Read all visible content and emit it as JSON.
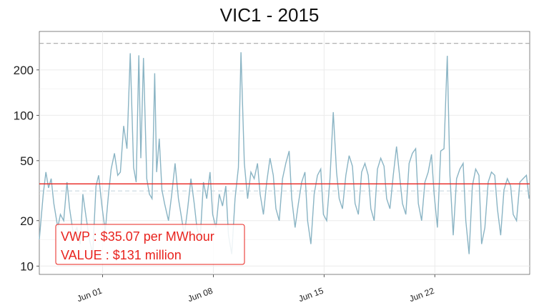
{
  "title": "VIC1 - 2015",
  "colors": {
    "series": "#8ab4c4",
    "vwp_line": "#e8231e",
    "cap_line": "#a8a8a8",
    "dashed_light": "#c9d8df",
    "annotation": "#e8231e",
    "grid": "#ebebeb"
  },
  "annotation": {
    "vwp_text": "VWP : $35.07 per MWhour",
    "value_text": "VALUE : $131 million"
  },
  "chart_data": {
    "type": "line",
    "title": "VIC1 - 2015",
    "xlabel": "",
    "ylabel": "",
    "y_scale": "log",
    "xlim": [
      "2015-05-28",
      "2015-06-28"
    ],
    "ylim": [
      8.8,
      360
    ],
    "grid": true,
    "y_ticks": [
      10,
      20,
      50,
      100,
      200
    ],
    "y_tick_labels": [
      "10",
      "20",
      "50",
      "100",
      "200"
    ],
    "x_ticks": [
      "2015-06-01",
      "2015-06-08",
      "2015-06-15",
      "2015-06-22"
    ],
    "x_tick_labels": [
      "Jun 01",
      "Jun 08",
      "Jun 15",
      "Jun 22"
    ],
    "reference_lines": [
      {
        "kind": "vwp",
        "y": 35.07
      },
      {
        "kind": "cap",
        "y": 300
      },
      {
        "kind": "mean",
        "y": 31.5
      }
    ],
    "series": [
      {
        "x": [
          "2015-05-28 00:00",
          "2015-05-28 06:00",
          "2015-05-28 10:00",
          "2015-05-28 14:00",
          "2015-05-28 18:00",
          "2015-05-28 22:00",
          "2015-05-29 04:00",
          "2015-05-29 08:00",
          "2015-05-29 13:00",
          "2015-05-29 18:00",
          "2015-05-29 22:00",
          "2015-05-30 04:00",
          "2015-05-30 09:00",
          "2015-05-30 14:00",
          "2015-05-30 18:00",
          "2015-05-30 23:00",
          "2015-05-31 04:00",
          "2015-05-31 09:00",
          "2015-05-31 14:00",
          "2015-05-31 18:00",
          "2015-05-31 23:00",
          "2015-06-01 04:00",
          "2015-06-01 09:00",
          "2015-06-01 13:00",
          "2015-06-01 18:00",
          "2015-06-01 23:00",
          "2015-06-02 03:00",
          "2015-06-02 08:00",
          "2015-06-02 13:00",
          "2015-06-02 18:00",
          "2015-06-02 23:00",
          "2015-06-03 03:00",
          "2015-06-03 07:00",
          "2015-06-03 10:00",
          "2015-06-03 14:00",
          "2015-06-03 19:00",
          "2015-06-03 23:00",
          "2015-06-04 03:00",
          "2015-06-04 07:00",
          "2015-06-04 10:00",
          "2015-06-04 14:00",
          "2015-06-04 18:00",
          "2015-06-04 22:00",
          "2015-06-05 04:00",
          "2015-06-05 09:00",
          "2015-06-05 14:00",
          "2015-06-05 19:00",
          "2015-06-05 23:00",
          "2015-06-06 04:00",
          "2015-06-06 09:00",
          "2015-06-06 14:00",
          "2015-06-06 19:00",
          "2015-06-06 23:00",
          "2015-06-07 04:00",
          "2015-06-07 09:00",
          "2015-06-07 14:00",
          "2015-06-07 19:00",
          "2015-06-07 23:00",
          "2015-06-08 04:00",
          "2015-06-08 09:00",
          "2015-06-08 14:00",
          "2015-06-08 19:00",
          "2015-06-08 23:00",
          "2015-06-09 04:00",
          "2015-06-09 09:00",
          "2015-06-09 14:00",
          "2015-06-09 18:00",
          "2015-06-09 23:00",
          "2015-06-10 04:00",
          "2015-06-10 09:00",
          "2015-06-10 14:00",
          "2015-06-10 19:00",
          "2015-06-10 23:00",
          "2015-06-11 04:00",
          "2015-06-11 09:00",
          "2015-06-11 14:00",
          "2015-06-11 19:00",
          "2015-06-11 23:00",
          "2015-06-12 04:00",
          "2015-06-12 09:00",
          "2015-06-12 14:00",
          "2015-06-12 19:00",
          "2015-06-12 23:00",
          "2015-06-13 04:00",
          "2015-06-13 09:00",
          "2015-06-13 14:00",
          "2015-06-13 19:00",
          "2015-06-13 23:00",
          "2015-06-14 04:00",
          "2015-06-14 09:00",
          "2015-06-14 14:00",
          "2015-06-14 19:00",
          "2015-06-14 23:00",
          "2015-06-15 04:00",
          "2015-06-15 09:00",
          "2015-06-15 14:00",
          "2015-06-15 19:00",
          "2015-06-15 23:00",
          "2015-06-16 04:00",
          "2015-06-16 09:00",
          "2015-06-16 14:00",
          "2015-06-16 19:00",
          "2015-06-16 23:00",
          "2015-06-17 04:00",
          "2015-06-17 09:00",
          "2015-06-17 14:00",
          "2015-06-17 19:00",
          "2015-06-17 23:00",
          "2015-06-18 04:00",
          "2015-06-18 09:00",
          "2015-06-18 14:00",
          "2015-06-18 19:00",
          "2015-06-18 23:00",
          "2015-06-19 04:00",
          "2015-06-19 09:00",
          "2015-06-19 14:00",
          "2015-06-19 19:00",
          "2015-06-19 23:00",
          "2015-06-20 04:00",
          "2015-06-20 09:00",
          "2015-06-20 14:00",
          "2015-06-20 19:00",
          "2015-06-20 23:00",
          "2015-06-21 04:00",
          "2015-06-21 09:00",
          "2015-06-21 14:00",
          "2015-06-21 19:00",
          "2015-06-21 23:00",
          "2015-06-22 04:00",
          "2015-06-22 09:00",
          "2015-06-22 14:00",
          "2015-06-22 19:00",
          "2015-06-22 23:00",
          "2015-06-23 04:00",
          "2015-06-23 09:00",
          "2015-06-23 14:00",
          "2015-06-23 19:00",
          "2015-06-23 23:00",
          "2015-06-24 04:00",
          "2015-06-24 09:00",
          "2015-06-24 14:00",
          "2015-06-24 19:00",
          "2015-06-24 23:00",
          "2015-06-25 04:00",
          "2015-06-25 09:00",
          "2015-06-25 14:00",
          "2015-06-25 19:00",
          "2015-06-25 23:00",
          "2015-06-26 04:00",
          "2015-06-26 09:00",
          "2015-06-26 14:00",
          "2015-06-26 19:00",
          "2015-06-26 23:00",
          "2015-06-27 04:00",
          "2015-06-27 09:00",
          "2015-06-27 14:00",
          "2015-06-27 19:00",
          "2015-06-27 23:00"
        ],
        "values": [
          15,
          30,
          42,
          33,
          38,
          26,
          18,
          22,
          20,
          36,
          24,
          16,
          18,
          14,
          30,
          21,
          15,
          12,
          34,
          40,
          25,
          17,
          30,
          44,
          56,
          40,
          42,
          85,
          60,
          258,
          45,
          36,
          250,
          52,
          240,
          38,
          30,
          28,
          190,
          42,
          70,
          32,
          26,
          20,
          30,
          48,
          28,
          22,
          16,
          24,
          38,
          26,
          18,
          15,
          36,
          28,
          42,
          22,
          18,
          30,
          25,
          34,
          16,
          12,
          28,
          45,
          262,
          48,
          28,
          42,
          38,
          48,
          30,
          22,
          36,
          52,
          40,
          24,
          20,
          38,
          48,
          58,
          28,
          18,
          26,
          36,
          42,
          20,
          14,
          30,
          40,
          44,
          22,
          20,
          38,
          105,
          42,
          28,
          24,
          40,
          54,
          46,
          26,
          22,
          42,
          48,
          40,
          24,
          20,
          44,
          52,
          46,
          28,
          24,
          40,
          62,
          38,
          26,
          22,
          48,
          56,
          60,
          26,
          20,
          36,
          42,
          55,
          30,
          18,
          58,
          60,
          248,
          40,
          16,
          38,
          44,
          48,
          20,
          12,
          34,
          44,
          40,
          14,
          18,
          36,
          42,
          40,
          24,
          16,
          32,
          38,
          34,
          22,
          20,
          36,
          38,
          40,
          28
        ]
      }
    ]
  }
}
